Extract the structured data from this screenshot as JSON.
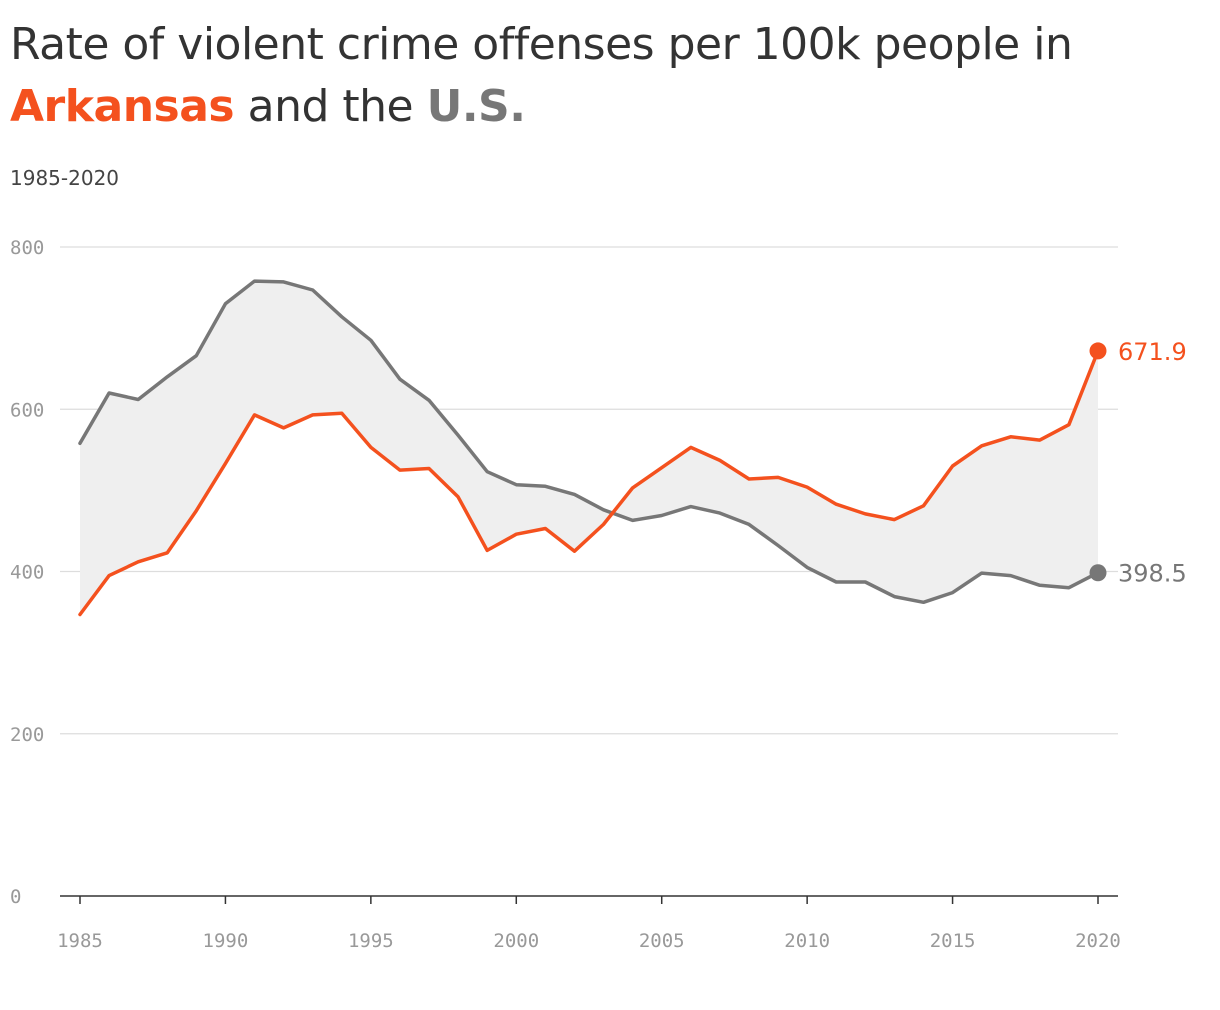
{
  "title": {
    "line1": "Rate of violent crime offenses per 100k people in",
    "highlight_state": "Arkansas",
    "connector": "and the",
    "highlight_us": "U.S."
  },
  "subtitle": "1985-2020",
  "colors": {
    "arkansas": "#f4511e",
    "us": "#777777",
    "fill": "#efefef",
    "grid": "#dddddd",
    "axis": "#333333"
  },
  "chart_data": {
    "type": "line",
    "title": "Rate of violent crime offenses per 100k people in Arkansas and the U.S.",
    "subtitle": "1985-2020",
    "xlabel": "",
    "ylabel": "",
    "x": [
      1985,
      1986,
      1987,
      1988,
      1989,
      1990,
      1991,
      1992,
      1993,
      1994,
      1995,
      1996,
      1997,
      1998,
      1999,
      2000,
      2001,
      2002,
      2003,
      2004,
      2005,
      2006,
      2007,
      2008,
      2009,
      2010,
      2011,
      2012,
      2013,
      2014,
      2015,
      2016,
      2017,
      2018,
      2019,
      2020
    ],
    "xticks": [
      1985,
      1990,
      1995,
      2000,
      2005,
      2010,
      2015,
      2020
    ],
    "xlim": [
      1985,
      2020
    ],
    "ylim": [
      0,
      800
    ],
    "yticks": [
      0,
      200,
      400,
      600,
      800
    ],
    "grid": true,
    "series": [
      {
        "name": "Arkansas",
        "values": [
          347,
          395,
          412,
          423,
          475,
          533,
          593,
          577,
          593,
          595,
          553,
          525,
          527,
          492,
          426,
          446,
          453,
          425,
          458,
          503,
          528,
          553,
          537,
          514,
          516,
          504,
          483,
          471,
          464,
          481,
          530,
          555,
          566,
          562,
          581,
          671.9
        ],
        "end_label": "671.9"
      },
      {
        "name": "U.S.",
        "values": [
          558,
          620,
          612,
          640,
          666,
          730,
          758,
          757,
          747,
          714,
          685,
          637,
          611,
          568,
          523,
          507,
          505,
          495,
          476,
          463,
          469,
          480,
          472,
          458,
          432,
          405,
          387,
          387,
          369,
          362,
          374,
          398,
          395,
          383,
          380,
          398.5
        ],
        "end_label": "398.5"
      }
    ]
  }
}
